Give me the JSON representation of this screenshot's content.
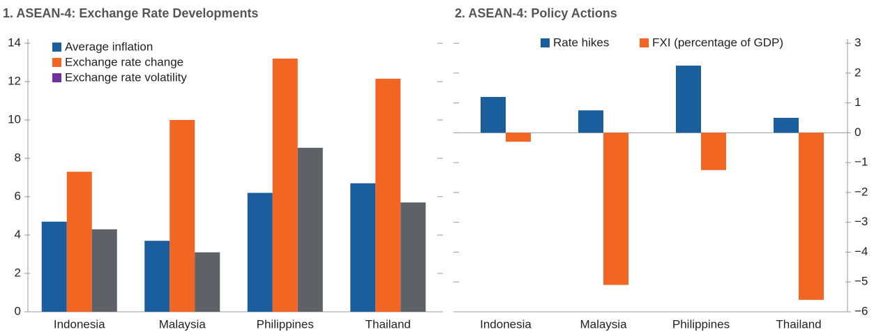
{
  "chart_data": [
    {
      "type": "bar",
      "title": "1. ASEAN-4: Exchange Rate Developments",
      "categories": [
        "Indonesia",
        "Malaysia",
        "Philippines",
        "Thailand"
      ],
      "series": [
        {
          "name": "Average inflation",
          "color": "#1b5e9e",
          "values": [
            4.7,
            3.7,
            6.2,
            6.7
          ]
        },
        {
          "name": "Exchange rate change",
          "color": "#f26522",
          "values": [
            7.3,
            10.0,
            13.2,
            12.15
          ]
        },
        {
          "name": "Exchange rate volatility",
          "color": "#5e6266",
          "legend_color": "#7030a0",
          "values": [
            4.3,
            3.1,
            8.55,
            5.7
          ]
        }
      ],
      "ylim": [
        0,
        14
      ],
      "yticks": [
        0,
        2,
        4,
        6,
        8,
        10,
        12,
        14
      ],
      "legend": "upper left"
    },
    {
      "type": "bar",
      "title": "2. ASEAN-4: Policy Actions",
      "categories": [
        "Indonesia",
        "Malaysia",
        "Philippines",
        "Thailand"
      ],
      "series": [
        {
          "name": "Rate hikes",
          "color": "#1b5e9e",
          "axis": "y2",
          "values": [
            1.2,
            0.75,
            2.25,
            0.5
          ]
        },
        {
          "name": "FXI (percentage of GDP)",
          "color": "#f26522",
          "axis": "y2",
          "values": [
            -0.3,
            -5.1,
            -1.25,
            -5.6
          ]
        }
      ],
      "y2lim": [
        -6,
        3
      ],
      "y2ticks": [
        {
          "value": -6,
          "label": "−6"
        },
        {
          "value": -5,
          "label": "−5"
        },
        {
          "value": -4,
          "label": "−4"
        },
        {
          "value": -3,
          "label": "−3"
        },
        {
          "value": -2,
          "label": "−2"
        },
        {
          "value": -1,
          "label": "−1"
        },
        0,
        1,
        2,
        3
      ],
      "legend": "upper center"
    }
  ]
}
